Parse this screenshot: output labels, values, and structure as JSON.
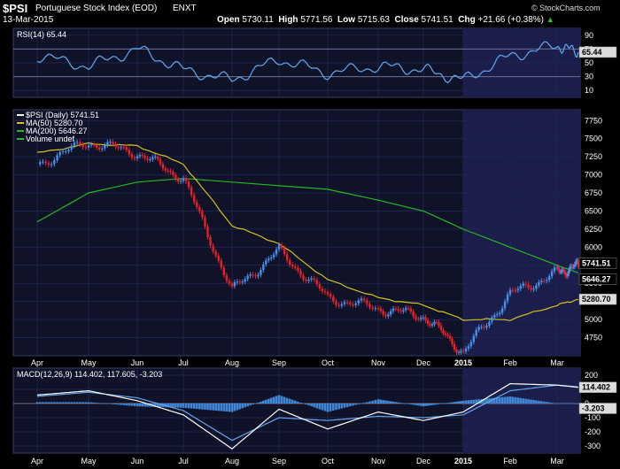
{
  "header": {
    "symbol": "$PSI",
    "name": "Portuguese Stock Index (EOD)",
    "exchange": "ENXT",
    "date": "13-Mar-2015",
    "logo": "© StockCharts.com",
    "open_label": "Open",
    "open": "5730.11",
    "high_label": "High",
    "high": "5771.56",
    "low_label": "Low",
    "low": "5715.63",
    "close_label": "Close",
    "close": "5741.51",
    "chg_label": "Chg",
    "chg": "+21.66 (+0.38%)",
    "chg_icon": "up-triangle-icon"
  },
  "colors": {
    "up": "#4a8fe7",
    "down": "#e8202a",
    "ma50": "#d6c21c",
    "ma200": "#25b825",
    "rsi": "#5fa9ee",
    "macd": "#ffffff",
    "signal": "#5fa9ee",
    "hist": "#3f88d8",
    "panel": "#101228",
    "grid": "#1d2450",
    "highlight": "#1b1e4a"
  },
  "rsi_panel": {
    "legend": "RSI(14) 65.44",
    "value_tag": "65.44",
    "ticks": [
      "90",
      "70",
      "50",
      "30",
      "10"
    ]
  },
  "price_panel": {
    "legend": [
      "$PSI (Daily) 5741.51",
      "MA(50) 5280.70",
      "MA(200) 5646.27",
      "Volume undef"
    ],
    "tags": [
      "5741.51",
      "5646.27",
      "5280.70"
    ],
    "ticks": [
      "7750",
      "7500",
      "7250",
      "7000",
      "6750",
      "6500",
      "6250",
      "6000",
      "5750",
      "5500",
      "5250",
      "5000",
      "4750"
    ]
  },
  "macd_panel": {
    "legend": "MACD(12,26,9) 114.402, 117.605, -3.203",
    "tags": [
      "114.402",
      "-3.203"
    ],
    "ticks": [
      "200",
      "100",
      "0",
      "-100",
      "-200",
      "-300"
    ]
  },
  "x_axis": [
    "Apr",
    "May",
    "Jun",
    "Jul",
    "Aug",
    "Sep",
    "Oct",
    "Nov",
    "Dec",
    "2015",
    "Feb",
    "Mar"
  ],
  "chart_data": {
    "type": "line",
    "title": "$PSI Portuguese Stock Index (EOD) ENXT",
    "x_labels": [
      "Apr",
      "May",
      "Jun",
      "Jul",
      "Aug",
      "Sep",
      "Oct",
      "Nov",
      "Dec",
      "2015",
      "Feb",
      "Mar"
    ],
    "x_months": [
      0,
      1,
      2,
      3,
      4,
      5,
      6,
      7,
      8,
      9,
      10,
      11,
      11.45
    ],
    "series": [
      {
        "name": "$PSI (Daily) 5741.51",
        "values": [
          7150,
          7450,
          7300,
          6950,
          5400,
          5950,
          5300,
          5150,
          5050,
          4550,
          5350,
          5650,
          5741.51
        ]
      },
      {
        "name": "MA(50) 5280.70",
        "values": [
          7300,
          7430,
          7400,
          7150,
          6300,
          6050,
          5550,
          5300,
          5200,
          5000,
          5000,
          5200,
          5280.7
        ]
      },
      {
        "name": "MA(200) 5646.27",
        "values": [
          6350,
          6750,
          6900,
          6950,
          6900,
          6850,
          6800,
          6650,
          6500,
          6250,
          6000,
          5750,
          5646.27
        ]
      }
    ],
    "rsi": {
      "name": "RSI(14) 65.44",
      "values": [
        60,
        45,
        70,
        40,
        25,
        55,
        35,
        45,
        40,
        25,
        60,
        75,
        65.44
      ]
    },
    "macd": [
      {
        "name": "MACD",
        "values": [
          60,
          90,
          20,
          -80,
          -320,
          -40,
          -180,
          -60,
          -120,
          -60,
          140,
          130,
          114.402
        ]
      },
      {
        "name": "signal",
        "values": [
          50,
          80,
          40,
          -50,
          -260,
          -100,
          -120,
          -90,
          -100,
          -80,
          90,
          130,
          117.605
        ]
      }
    ],
    "ylim_price": [
      4500,
      7900
    ],
    "ylim_rsi": [
      0,
      100
    ],
    "ylim_macd": [
      -350,
      250
    ]
  }
}
